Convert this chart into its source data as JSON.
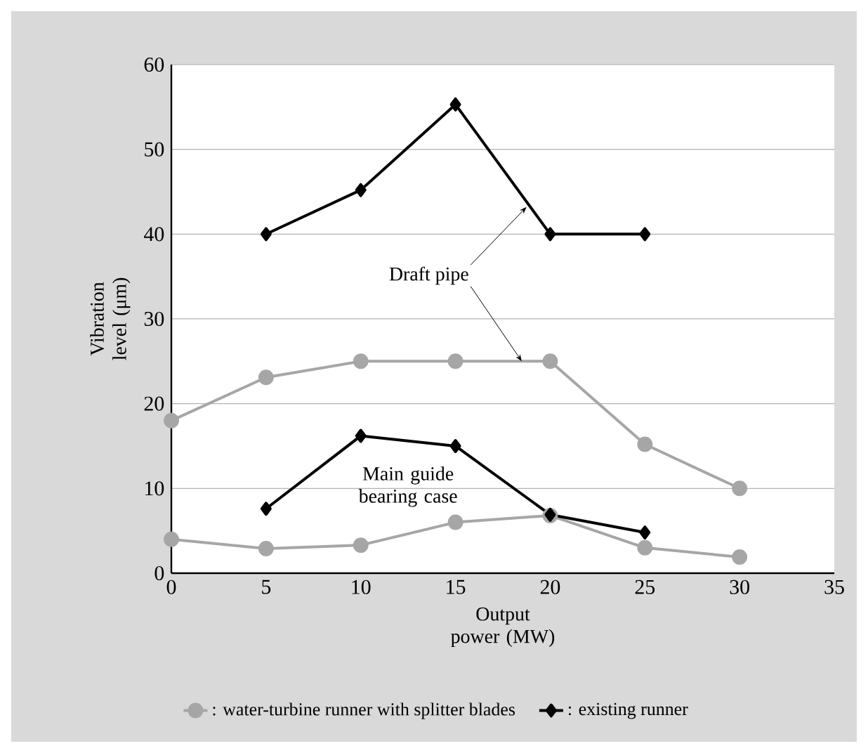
{
  "chart_data": {
    "type": "line",
    "xlabel": "Output power (MW)",
    "ylabel": "Vibration level (μm)",
    "xlim": [
      0,
      35
    ],
    "xticks": [
      0,
      5,
      10,
      15,
      20,
      25,
      30,
      35
    ],
    "ylim": [
      0,
      60
    ],
    "yticks": [
      0,
      10,
      20,
      30,
      40,
      50,
      60
    ],
    "grid": "y",
    "legend": "bottom",
    "line_style": "solid",
    "annotations": [
      {
        "text": "Draft pipe",
        "x": 18.5,
        "y": 25.0
      },
      "Main guide bearing case"
    ],
    "series": [
      {
        "name": ": water-turbine runner with splitter blades",
        "color": "#a6a6a6",
        "marker": "circle",
        "x": [
          0,
          5,
          10,
          15,
          20,
          25,
          30
        ],
        "values": [
          18.0,
          23.1,
          25.0,
          25.0,
          25.0,
          15.2,
          10.0
        ]
      },
      {
        "name": ": existing runner",
        "color": "#000000",
        "marker": "diamond",
        "x": [
          5,
          10,
          15,
          20,
          25
        ],
        "values": [
          40.0,
          45.2,
          55.3,
          40.0,
          40.0
        ]
      },
      {
        "color": "#a6a6a6",
        "marker": "circle",
        "x": [
          0,
          5,
          10,
          15,
          20,
          25,
          30
        ],
        "values": [
          4.0,
          2.9,
          3.3,
          6.0,
          6.8,
          3.0,
          1.9
        ]
      },
      {
        "color": "#000000",
        "marker": "diamond",
        "x": [
          5,
          10,
          15,
          20,
          25
        ],
        "values": [
          7.6,
          16.2,
          15.0,
          6.9,
          4.8
        ]
      }
    ]
  }
}
